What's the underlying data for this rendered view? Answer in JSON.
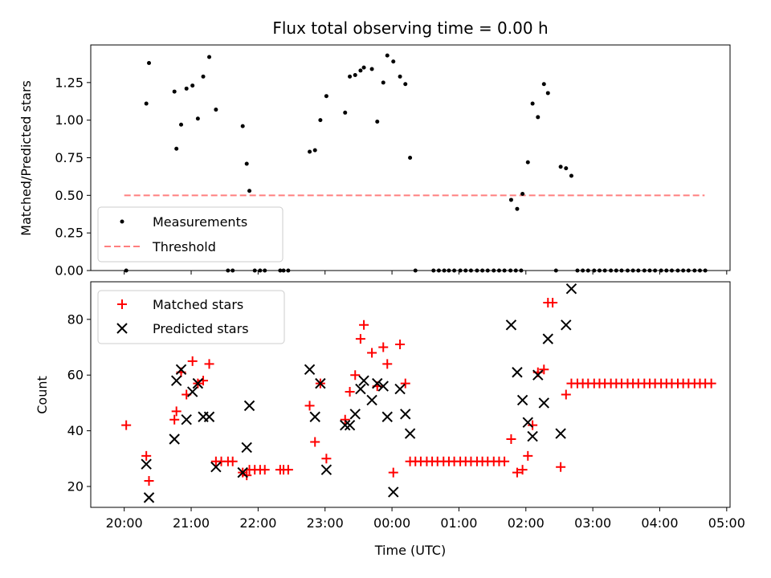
{
  "chart_data": [
    {
      "type": "scatter",
      "title": "Flux total observing time = 0.00 h",
      "xlabel": "",
      "ylabel": "Matched/Predicted stars",
      "xlim": [
        -0.5,
        9.05
      ],
      "ylim": [
        0,
        1.5
      ],
      "yticks": [
        0.0,
        0.25,
        0.5,
        0.75,
        1.0,
        1.25
      ],
      "ytick_labels": [
        "0.00",
        "0.25",
        "0.50",
        "0.75",
        "1.00",
        "1.25"
      ],
      "legend": {
        "position": "lower-left",
        "entries": [
          "Measurements",
          "Threshold"
        ]
      },
      "threshold": {
        "name": "Threshold",
        "y": 0.5,
        "x": [
          0.0,
          8.67
        ],
        "color": "#ff7f7f",
        "style": "dashed"
      },
      "series": [
        {
          "name": "Measurements",
          "color": "#000000",
          "marker": "dot",
          "x": [
            0.03,
            0.33,
            0.37,
            0.75,
            0.78,
            0.85,
            0.93,
            1.02,
            1.1,
            1.18,
            1.27,
            1.37,
            1.55,
            1.62,
            1.77,
            1.83,
            1.87,
            1.95,
            2.03,
            2.1,
            2.33,
            2.38,
            2.45,
            2.77,
            2.85,
            2.93,
            3.02,
            3.3,
            3.37,
            3.45,
            3.53,
            3.58,
            3.7,
            3.78,
            3.87,
            3.93,
            4.02,
            4.12,
            4.2,
            4.27,
            4.35,
            4.62,
            4.7,
            4.78,
            4.85,
            4.93,
            5.02,
            5.1,
            5.18,
            5.27,
            5.35,
            5.43,
            5.52,
            5.6,
            5.68,
            5.77,
            5.85,
            5.93,
            5.78,
            5.87,
            5.95,
            6.03,
            6.1,
            6.18,
            6.27,
            6.33,
            6.45,
            6.52,
            6.6,
            6.68,
            6.77,
            6.85,
            6.93,
            7.02,
            7.1,
            7.18,
            7.27,
            7.35,
            7.43,
            7.52,
            7.6,
            7.68,
            7.77,
            7.85,
            7.93,
            8.02,
            8.1,
            8.18,
            8.27,
            8.35,
            8.43,
            8.52,
            8.6,
            8.68
          ],
          "y": [
            0.0,
            1.11,
            1.38,
            1.19,
            0.81,
            0.97,
            1.21,
            1.23,
            1.01,
            1.29,
            1.42,
            1.07,
            0.0,
            0.0,
            0.96,
            0.71,
            0.53,
            0.0,
            0.0,
            0.0,
            0.0,
            0.0,
            0.0,
            0.79,
            0.8,
            1.0,
            1.16,
            1.05,
            1.29,
            1.3,
            1.33,
            1.35,
            1.34,
            0.99,
            1.25,
            1.43,
            1.39,
            1.29,
            1.24,
            0.75,
            0.0,
            0.0,
            0.0,
            0.0,
            0.0,
            0.0,
            0.0,
            0.0,
            0.0,
            0.0,
            0.0,
            0.0,
            0.0,
            0.0,
            0.0,
            0.0,
            0.0,
            0.0,
            0.47,
            0.41,
            0.51,
            0.72,
            1.11,
            1.02,
            1.24,
            1.18,
            0.0,
            0.69,
            0.68,
            0.63,
            0.0,
            0.0,
            0.0,
            0.0,
            0.0,
            0.0,
            0.0,
            0.0,
            0.0,
            0.0,
            0.0,
            0.0,
            0.0,
            0.0,
            0.0,
            0.0,
            0.0,
            0.0,
            0.0,
            0.0,
            0.0,
            0.0,
            0.0,
            0.0
          ]
        }
      ]
    },
    {
      "type": "scatter",
      "title": "",
      "xlabel": "Time (UTC)",
      "ylabel": "Count",
      "xlim": [
        -0.5,
        9.05
      ],
      "ylim": [
        12.5,
        93.5
      ],
      "yticks": [
        20,
        40,
        60,
        80
      ],
      "ytick_labels": [
        "20",
        "40",
        "60",
        "80"
      ],
      "xticks": [
        0,
        1,
        2,
        3,
        4,
        5,
        6,
        7,
        8,
        9
      ],
      "xtick_labels": [
        "20:00",
        "21:00",
        "22:00",
        "23:00",
        "00:00",
        "01:00",
        "02:00",
        "03:00",
        "04:00",
        "05:00"
      ],
      "legend": {
        "position": "top-left",
        "entries": [
          "Matched stars",
          "Predicted stars"
        ]
      },
      "series": [
        {
          "name": "Matched stars",
          "color": "#ff0000",
          "marker": "plus",
          "x": [
            0.03,
            0.33,
            0.37,
            0.75,
            0.78,
            0.85,
            0.93,
            1.02,
            1.1,
            1.18,
            1.27,
            1.37,
            1.45,
            1.55,
            1.62,
            1.77,
            1.83,
            1.87,
            1.95,
            2.03,
            2.1,
            2.33,
            2.38,
            2.45,
            2.77,
            2.85,
            2.93,
            3.02,
            3.3,
            3.37,
            3.45,
            3.53,
            3.58,
            3.7,
            3.78,
            3.87,
            3.93,
            4.02,
            4.12,
            4.2,
            4.27,
            4.35,
            4.43,
            4.52,
            4.6,
            4.68,
            4.77,
            4.85,
            4.93,
            5.02,
            5.1,
            5.18,
            5.27,
            5.35,
            5.43,
            5.52,
            5.6,
            5.68,
            5.78,
            5.87,
            5.95,
            6.03,
            6.1,
            6.18,
            6.27,
            6.33,
            6.4,
            6.52,
            6.6,
            6.68,
            6.77,
            6.85,
            6.93,
            7.02,
            7.1,
            7.18,
            7.27,
            7.35,
            7.43,
            7.52,
            7.6,
            7.68,
            7.77,
            7.85,
            7.93,
            8.02,
            8.1,
            8.18,
            8.27,
            8.35,
            8.43,
            8.52,
            8.6,
            8.68,
            8.77
          ],
          "y": [
            42,
            31,
            22,
            44,
            47,
            61,
            53,
            65,
            57,
            58,
            64,
            29,
            29,
            29,
            29,
            25,
            24,
            26,
            26,
            26,
            26,
            26,
            26,
            26,
            49,
            36,
            57,
            30,
            44,
            54,
            60,
            73,
            78,
            68,
            56,
            70,
            64,
            25,
            71,
            57,
            29,
            29,
            29,
            29,
            29,
            29,
            29,
            29,
            29,
            29,
            29,
            29,
            29,
            29,
            29,
            29,
            29,
            29,
            37,
            25,
            26,
            31,
            42,
            61,
            62,
            86,
            86,
            27,
            53,
            57,
            57,
            57,
            57,
            57,
            57,
            57,
            57,
            57,
            57,
            57,
            57,
            57,
            57,
            57,
            57,
            57,
            57,
            57,
            57,
            57,
            57,
            57,
            57,
            57,
            57
          ]
        },
        {
          "name": "Predicted stars",
          "color": "#000000",
          "marker": "x",
          "x": [
            0.33,
            0.37,
            0.75,
            0.78,
            0.85,
            0.93,
            1.02,
            1.1,
            1.18,
            1.27,
            1.37,
            1.77,
            1.83,
            1.87,
            2.77,
            2.85,
            2.93,
            3.02,
            3.3,
            3.37,
            3.45,
            3.53,
            3.58,
            3.7,
            3.78,
            3.87,
            3.93,
            4.02,
            4.12,
            4.2,
            4.27,
            5.78,
            5.87,
            5.95,
            6.03,
            6.1,
            6.18,
            6.27,
            6.33,
            6.52,
            6.6,
            6.68
          ],
          "y": [
            28,
            16,
            37,
            58,
            62,
            44,
            54,
            57,
            45,
            45,
            27,
            25,
            34,
            49,
            62,
            45,
            57,
            26,
            42,
            42,
            46,
            55,
            58,
            51,
            57,
            56,
            45,
            18,
            55,
            46,
            39,
            78,
            61,
            51,
            43,
            38,
            60,
            50,
            73,
            39,
            78,
            91
          ]
        }
      ]
    }
  ]
}
